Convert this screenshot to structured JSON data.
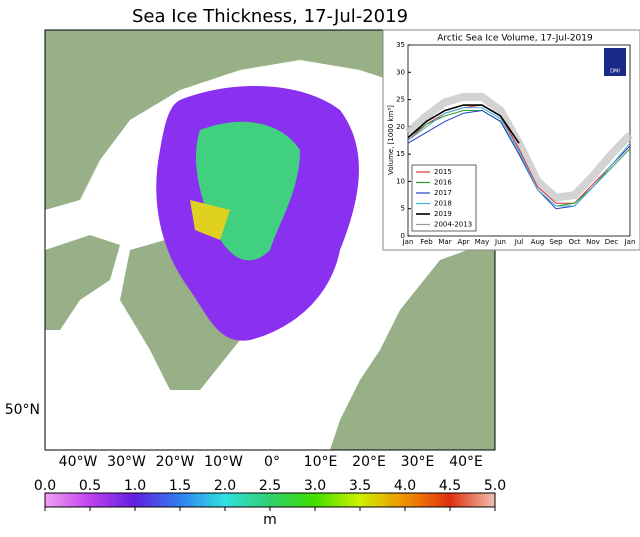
{
  "title": "Sea Ice Thickness, 17-Jul-2019",
  "map": {
    "longitude_labels": [
      "40°W",
      "30°W",
      "20°W",
      "10°W",
      "0°",
      "10°E",
      "20°E",
      "30°E",
      "40°E"
    ],
    "latitude_label": "50°N"
  },
  "colorbar": {
    "ticks": [
      {
        "value": 0,
        "label": "0.0"
      },
      {
        "value": 0.5,
        "label": "0.5"
      },
      {
        "value": 1,
        "label": "1.0"
      },
      {
        "value": 1.5,
        "label": "1.5"
      },
      {
        "value": 2,
        "label": "2.0"
      },
      {
        "value": 2.5,
        "label": "2.5"
      },
      {
        "value": 3,
        "label": "3.0"
      },
      {
        "value": 3.5,
        "label": "3.5"
      },
      {
        "value": 4,
        "label": "4.0"
      },
      {
        "value": 4.5,
        "label": "4.5"
      },
      {
        "value": 5,
        "label": "5.0"
      }
    ],
    "lim": [
      0,
      5
    ],
    "label": "m"
  },
  "inset_chart": {
    "type": "line",
    "title": "Arctic Sea Ice Volume, 17-Jul-2019",
    "y_label": "Volume, [1000 km³]",
    "logo": "DMI",
    "categories": [
      "Jan",
      "Feb",
      "Mar",
      "Apr",
      "May",
      "Jun",
      "Jul",
      "Aug",
      "Sep",
      "Oct",
      "Nov",
      "Dec",
      "Jan"
    ],
    "ylim": [
      0,
      35
    ],
    "yticks": [
      0,
      5,
      10,
      15,
      20,
      25,
      30,
      35
    ],
    "series": [
      {
        "name": "2015",
        "color": "#e03030",
        "values": [
          17.5,
          20.5,
          22.5,
          23.5,
          24,
          22,
          16,
          9,
          6,
          6,
          9.5,
          13,
          16.5
        ]
      },
      {
        "name": "2016",
        "color": "#2a9a2a",
        "values": [
          18,
          20.5,
          22,
          23,
          23,
          21,
          15,
          8.5,
          5.5,
          6,
          9,
          12.5,
          16
        ]
      },
      {
        "name": "2017",
        "color": "#2040c0",
        "values": [
          17,
          19,
          21,
          22.5,
          23,
          21,
          15,
          8.5,
          5,
          5.5,
          9,
          13,
          16.5
        ]
      },
      {
        "name": "2018",
        "color": "#40b0e0",
        "values": [
          17.5,
          20,
          22.5,
          23.5,
          23.5,
          21.5,
          15.5,
          8.5,
          5.5,
          5.5,
          9,
          13,
          17
        ]
      },
      {
        "name": "2019",
        "color": "#000000",
        "values": [
          18,
          21,
          23,
          24,
          24,
          22,
          17,
          null,
          null,
          null,
          null,
          null,
          null
        ]
      },
      {
        "name": "2004-2013",
        "color": "#999999",
        "values": [
          19,
          22,
          24.5,
          25.5,
          25.5,
          23,
          17,
          10,
          7,
          7.5,
          11,
          15,
          18.5
        ]
      }
    ]
  }
}
